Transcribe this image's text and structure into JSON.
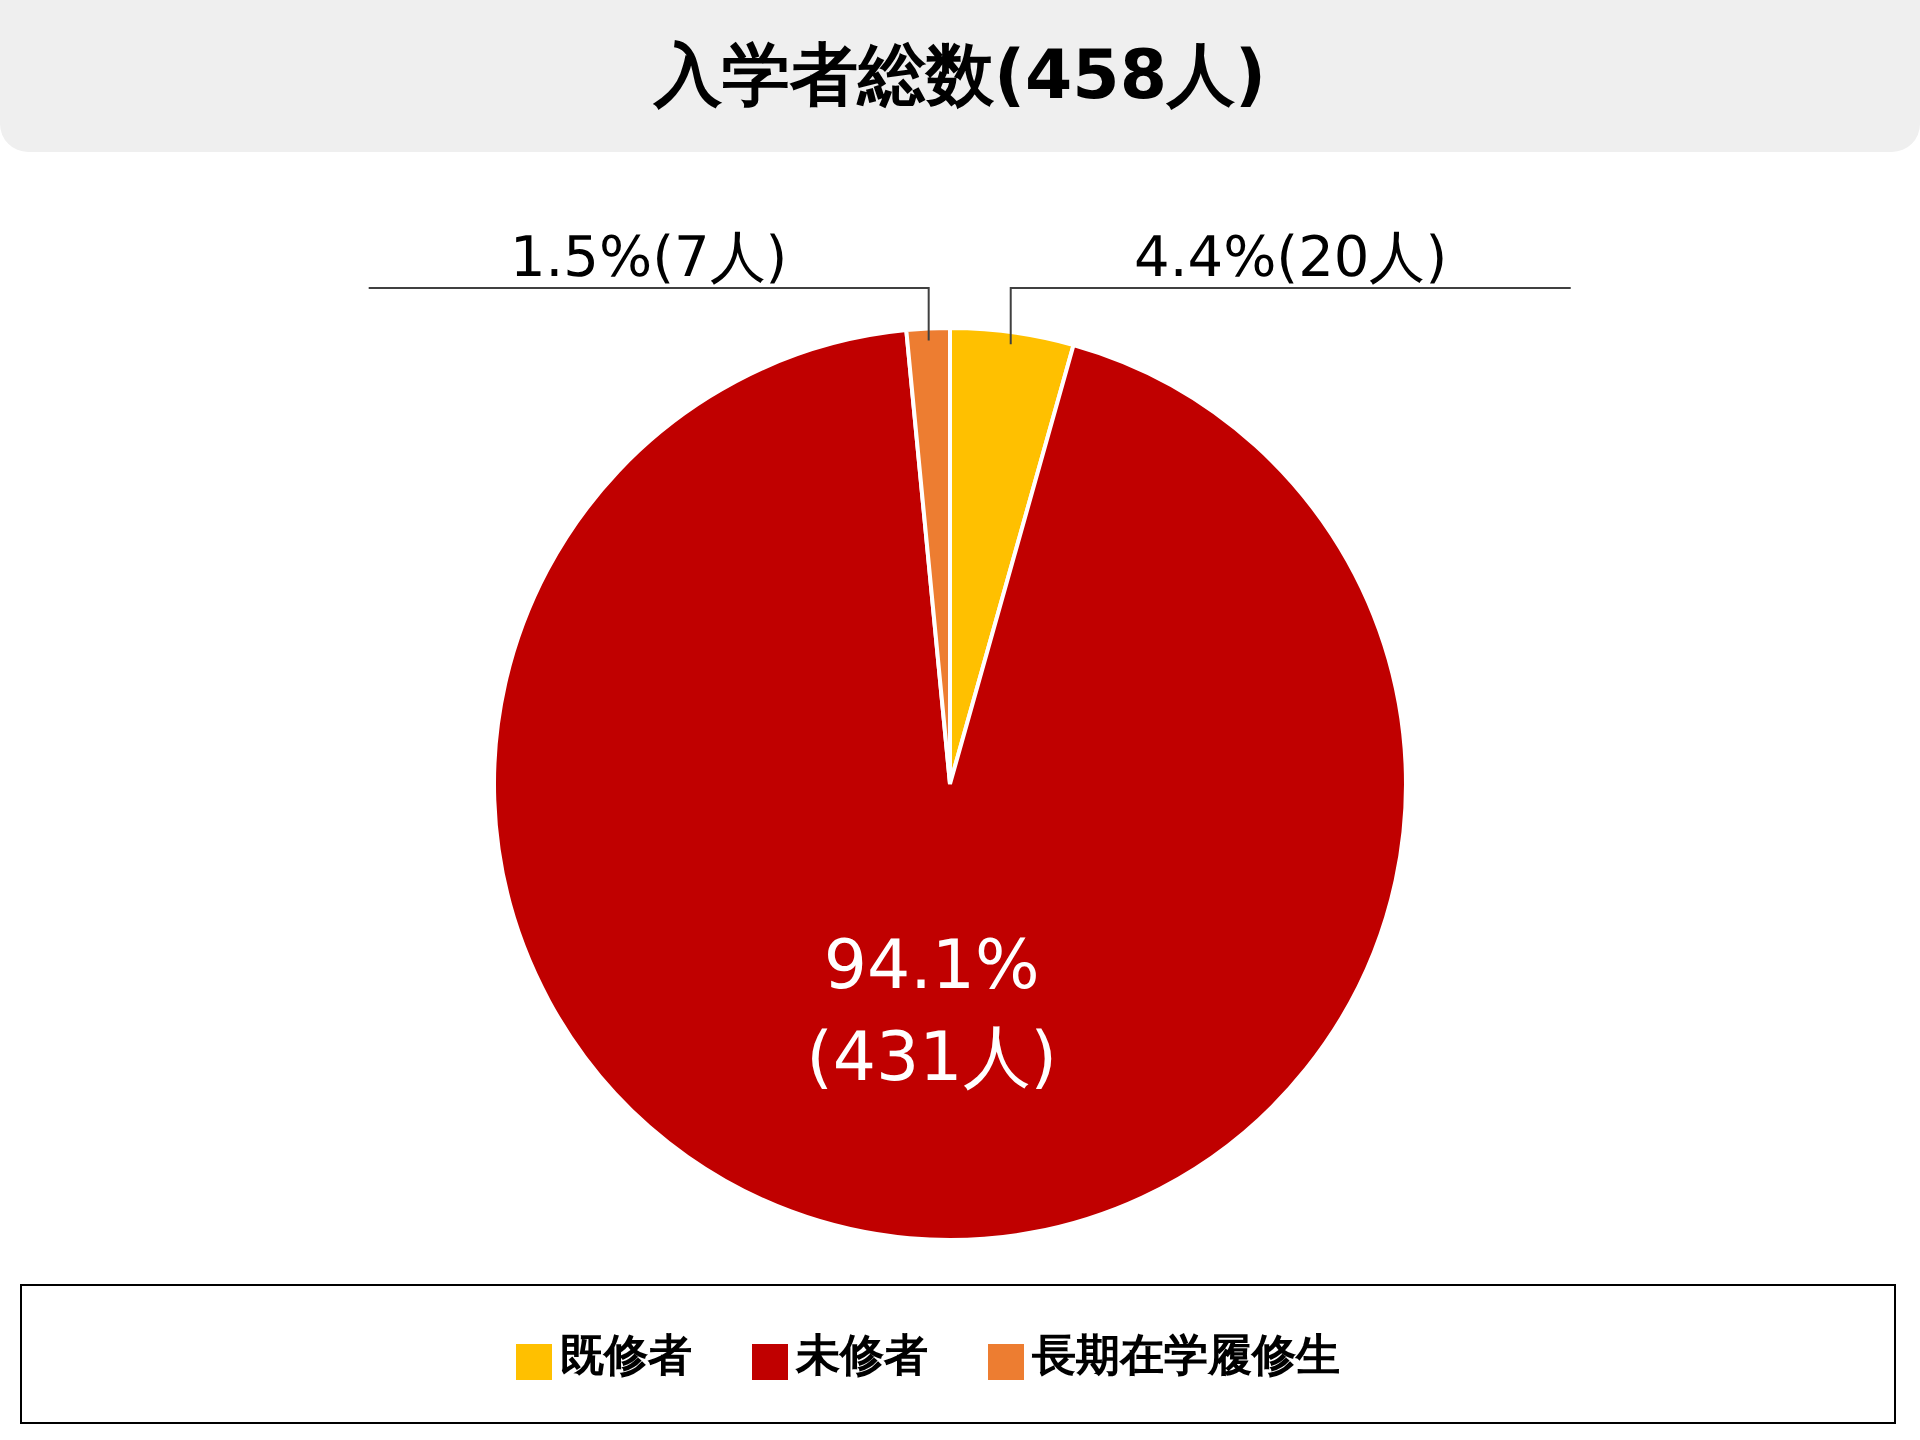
{
  "chart_data": {
    "type": "pie",
    "title": "入学者総数(458人)",
    "categories": [
      "既修者",
      "未修者",
      "長期在学履修生"
    ],
    "values": [
      20,
      431,
      7
    ],
    "colors": [
      "#ffc000",
      "#c00000",
      "#ed7d31"
    ],
    "value_labels": [
      "4.4%(20人)",
      "94.1%(431人)",
      "1.5%(7人)"
    ],
    "legend": "bottom"
  }
}
